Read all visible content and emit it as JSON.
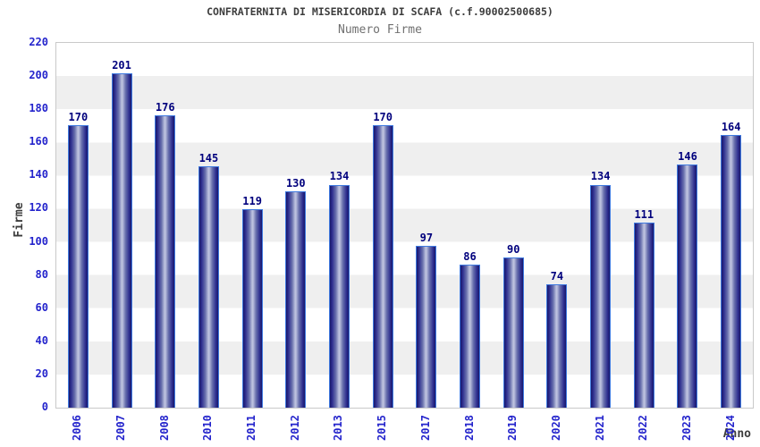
{
  "chart_data": {
    "type": "bar",
    "title": "CONFRATERNITA DI MISERICORDIA DI SCAFA (c.f.90002500685)",
    "subtitle": "Numero Firme",
    "xlabel": "Anno",
    "ylabel": "Firme",
    "categories": [
      "2006",
      "2007",
      "2008",
      "2010",
      "2011",
      "2012",
      "2013",
      "2015",
      "2017",
      "2018",
      "2019",
      "2020",
      "2021",
      "2022",
      "2023",
      "2024"
    ],
    "values": [
      170,
      201,
      176,
      145,
      119,
      130,
      134,
      170,
      97,
      86,
      90,
      74,
      134,
      111,
      146,
      164
    ],
    "ylim": [
      0,
      220
    ],
    "ytick_step": 20,
    "yticks": [
      0,
      20,
      40,
      60,
      80,
      100,
      120,
      140,
      160,
      180,
      200,
      220
    ],
    "bar_labels": true,
    "grid": "alternating-horizontal-bands",
    "legend_position": "none"
  },
  "colors": {
    "bar_edge": "#17176b",
    "bar_mid": "#2e2e8f",
    "bar_center": "#bcc1de",
    "bar_border": "#3f7ae0",
    "value_label": "#00007d",
    "tick_label": "#2424cc",
    "title": "#3d3d3d",
    "subtitle": "#707070",
    "axis_title": "#3d3d3d",
    "band_gray": "#efefef",
    "band_white": "#ffffff",
    "plot_border": "#c9c9c9",
    "background": "#ffffff"
  }
}
